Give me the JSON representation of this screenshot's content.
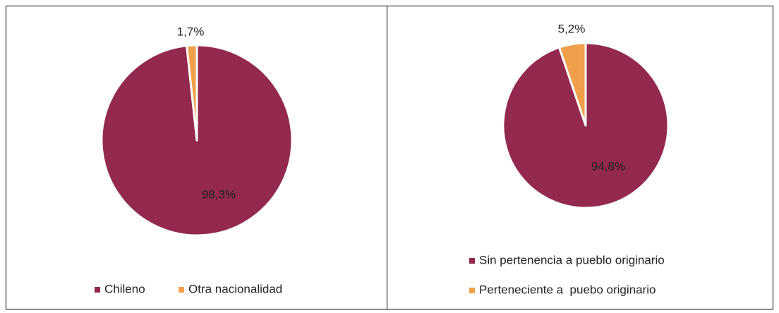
{
  "chart_data": [
    {
      "type": "pie",
      "categories": [
        "Chileno",
        "Otra nacionalidad"
      ],
      "values": [
        98.3,
        1.7
      ],
      "value_labels": [
        "98,3%",
        "1,7%"
      ],
      "colors": [
        "#93294e",
        "#f0a04a"
      ],
      "legend": "bottom"
    },
    {
      "type": "pie",
      "categories": [
        "Sin pertenencia a pueblo originario",
        "Perteneciente a  puebo originario"
      ],
      "values": [
        94.8,
        5.2
      ],
      "value_labels": [
        "94,8%",
        "5,2%"
      ],
      "colors": [
        "#93294e",
        "#f0a04a"
      ],
      "legend": "bottom"
    }
  ]
}
